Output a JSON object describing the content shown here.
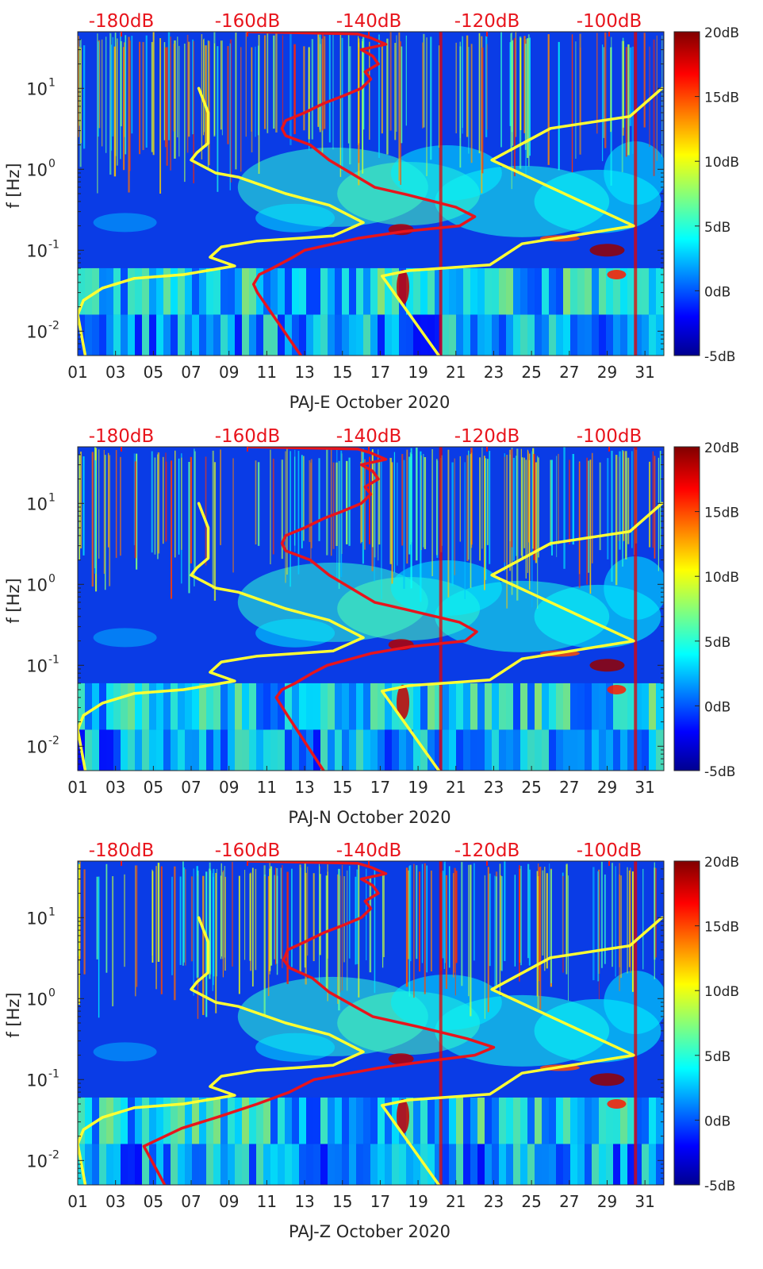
{
  "chart_data": [
    {
      "type": "heatmap",
      "title": "",
      "xlabel": "PAJ-E October 2020",
      "ylabel": "f [Hz]",
      "x_ticks": [
        "01",
        "03",
        "05",
        "07",
        "09",
        "11",
        "13",
        "15",
        "17",
        "19",
        "21",
        "23",
        "25",
        "27",
        "29",
        "31"
      ],
      "xlim": [
        1,
        32
      ],
      "yscale": "log",
      "ylim": [
        0.005,
        50
      ],
      "y_ticks": [
        {
          "base": "10",
          "exp": "1",
          "value": 10
        },
        {
          "base": "10",
          "exp": "0",
          "value": 1
        },
        {
          "base": "10",
          "exp": "-1",
          "value": 0.1
        },
        {
          "base": "10",
          "exp": "-2",
          "value": 0.01
        }
      ],
      "top_axis_ticks": [
        "-180dB",
        "-160dB",
        "-140dB",
        "-120dB",
        "-100dB"
      ],
      "top_axis_color": "#e8141c",
      "colorbar": {
        "ticks": [
          "20dB",
          "15dB",
          "10dB",
          "5dB",
          "0dB",
          "-5dB"
        ],
        "range": [
          -5,
          20
        ],
        "colormap": "jet"
      },
      "series": [
        {
          "color": "#ffff33",
          "points": [
            [
              1.4,
              0.005
            ],
            [
              1.0,
              0.016
            ],
            [
              1.3,
              0.024
            ],
            [
              2.3,
              0.034
            ],
            [
              4.0,
              0.045
            ],
            [
              6.6,
              0.05
            ],
            [
              9.3,
              0.064
            ],
            [
              8.0,
              0.082
            ],
            [
              8.6,
              0.11
            ],
            [
              10.5,
              0.13
            ],
            [
              14.5,
              0.15
            ],
            [
              16.1,
              0.22
            ],
            [
              14.3,
              0.36
            ],
            [
              12.0,
              0.5
            ],
            [
              9.5,
              0.8
            ],
            [
              8.3,
              0.9
            ],
            [
              7.0,
              1.3
            ],
            [
              7.3,
              1.6
            ],
            [
              7.9,
              2.1
            ],
            [
              7.9,
              5
            ],
            [
              7.4,
              10
            ]
          ]
        },
        {
          "color": "#ffff33",
          "points": [
            [
              20.1,
              0.005
            ],
            [
              17.1,
              0.048
            ],
            [
              18.5,
              0.056
            ],
            [
              22.8,
              0.066
            ],
            [
              24.5,
              0.12
            ],
            [
              30.4,
              0.2
            ],
            [
              26.0,
              0.6
            ],
            [
              22.9,
              1.3
            ],
            [
              26.0,
              3.2
            ],
            [
              30.2,
              4.5
            ],
            [
              31.9,
              10
            ]
          ]
        },
        {
          "color": "#e8141c",
          "points": [
            [
              12.8,
              0.005
            ],
            [
              10.5,
              0.03
            ],
            [
              10.3,
              0.038
            ],
            [
              10.6,
              0.05
            ],
            [
              11.3,
              0.06
            ],
            [
              12.3,
              0.08
            ],
            [
              13.0,
              0.1
            ],
            [
              15.8,
              0.14
            ],
            [
              18.2,
              0.17
            ],
            [
              21.2,
              0.2
            ],
            [
              22.0,
              0.26
            ],
            [
              21.0,
              0.34
            ],
            [
              18.5,
              0.48
            ],
            [
              16.7,
              0.6
            ],
            [
              14.3,
              1.3
            ],
            [
              13.3,
              2
            ],
            [
              12.0,
              2.6
            ],
            [
              11.8,
              3.2
            ],
            [
              12.0,
              4
            ],
            [
              13.0,
              5
            ],
            [
              14.0,
              6.5
            ],
            [
              15.0,
              8
            ],
            [
              16.0,
              10
            ],
            [
              16.5,
              13
            ],
            [
              16.2,
              16
            ],
            [
              16.9,
              20
            ],
            [
              16.6,
              25
            ],
            [
              16.0,
              30
            ],
            [
              17.3,
              35
            ],
            [
              16.5,
              42
            ],
            [
              15.8,
              47
            ],
            [
              10.0,
              50
            ]
          ]
        }
      ]
    },
    {
      "type": "heatmap",
      "title": "",
      "xlabel": "PAJ-N October 2020",
      "ylabel": "f [Hz]",
      "x_ticks": [
        "01",
        "03",
        "05",
        "07",
        "09",
        "11",
        "13",
        "15",
        "17",
        "19",
        "21",
        "23",
        "25",
        "27",
        "29",
        "31"
      ],
      "xlim": [
        1,
        32
      ],
      "yscale": "log",
      "ylim": [
        0.005,
        50
      ],
      "y_ticks": [
        {
          "base": "10",
          "exp": "1",
          "value": 10
        },
        {
          "base": "10",
          "exp": "0",
          "value": 1
        },
        {
          "base": "10",
          "exp": "-1",
          "value": 0.1
        },
        {
          "base": "10",
          "exp": "-2",
          "value": 0.01
        }
      ],
      "top_axis_ticks": [
        "-180dB",
        "-160dB",
        "-140dB",
        "-120dB",
        "-100dB"
      ],
      "top_axis_color": "#e8141c",
      "colorbar": {
        "ticks": [
          "20dB",
          "15dB",
          "10dB",
          "5dB",
          "0dB",
          "-5dB"
        ],
        "range": [
          -5,
          20
        ],
        "colormap": "jet"
      },
      "series": [
        {
          "color": "#ffff33",
          "points": [
            [
              1.4,
              0.005
            ],
            [
              1.0,
              0.016
            ],
            [
              1.3,
              0.024
            ],
            [
              2.3,
              0.034
            ],
            [
              4.0,
              0.045
            ],
            [
              6.6,
              0.05
            ],
            [
              9.3,
              0.064
            ],
            [
              8.0,
              0.082
            ],
            [
              8.6,
              0.11
            ],
            [
              10.5,
              0.13
            ],
            [
              14.5,
              0.15
            ],
            [
              16.1,
              0.22
            ],
            [
              14.3,
              0.36
            ],
            [
              12.0,
              0.5
            ],
            [
              9.5,
              0.8
            ],
            [
              8.3,
              0.9
            ],
            [
              7.0,
              1.3
            ],
            [
              7.3,
              1.6
            ],
            [
              7.9,
              2.1
            ],
            [
              7.9,
              5
            ],
            [
              7.4,
              10
            ]
          ]
        },
        {
          "color": "#ffff33",
          "points": [
            [
              20.1,
              0.005
            ],
            [
              17.1,
              0.048
            ],
            [
              18.5,
              0.056
            ],
            [
              22.8,
              0.066
            ],
            [
              24.5,
              0.12
            ],
            [
              30.4,
              0.2
            ],
            [
              26.0,
              0.6
            ],
            [
              22.9,
              1.3
            ],
            [
              26.0,
              3.2
            ],
            [
              30.2,
              4.5
            ],
            [
              31.9,
              10
            ]
          ]
        },
        {
          "color": "#e8141c",
          "points": [
            [
              14.0,
              0.005
            ],
            [
              12.0,
              0.026
            ],
            [
              11.5,
              0.04
            ],
            [
              11.8,
              0.05
            ],
            [
              12.5,
              0.06
            ],
            [
              13.4,
              0.08
            ],
            [
              14.2,
              0.1
            ],
            [
              16.5,
              0.14
            ],
            [
              18.6,
              0.17
            ],
            [
              21.5,
              0.2
            ],
            [
              22.1,
              0.26
            ],
            [
              21.2,
              0.34
            ],
            [
              18.5,
              0.48
            ],
            [
              16.7,
              0.6
            ],
            [
              14.3,
              1.3
            ],
            [
              13.3,
              2
            ],
            [
              12.0,
              2.6
            ],
            [
              11.8,
              3.2
            ],
            [
              12.0,
              4
            ],
            [
              13.0,
              5
            ],
            [
              14.0,
              6.5
            ],
            [
              15.0,
              8
            ],
            [
              16.0,
              10
            ],
            [
              16.5,
              13
            ],
            [
              16.2,
              16
            ],
            [
              16.9,
              20
            ],
            [
              16.6,
              25
            ],
            [
              16.0,
              30
            ],
            [
              17.3,
              35
            ],
            [
              16.5,
              42
            ],
            [
              15.8,
              47
            ],
            [
              10.0,
              50
            ]
          ]
        }
      ]
    },
    {
      "type": "heatmap",
      "title": "",
      "xlabel": "PAJ-Z October 2020",
      "ylabel": "f [Hz]",
      "x_ticks": [
        "01",
        "03",
        "05",
        "07",
        "09",
        "11",
        "13",
        "15",
        "17",
        "19",
        "21",
        "23",
        "25",
        "27",
        "29",
        "31"
      ],
      "xlim": [
        1,
        32
      ],
      "yscale": "log",
      "ylim": [
        0.005,
        50
      ],
      "y_ticks": [
        {
          "base": "10",
          "exp": "1",
          "value": 10
        },
        {
          "base": "10",
          "exp": "0",
          "value": 1
        },
        {
          "base": "10",
          "exp": "-1",
          "value": 0.1
        },
        {
          "base": "10",
          "exp": "-2",
          "value": 0.01
        }
      ],
      "top_axis_ticks": [
        "-180dB",
        "-160dB",
        "-140dB",
        "-120dB",
        "-100dB"
      ],
      "top_axis_color": "#e8141c",
      "colorbar": {
        "ticks": [
          "20dB",
          "15dB",
          "10dB",
          "5dB",
          "0dB",
          "-5dB"
        ],
        "range": [
          -5,
          20
        ],
        "colormap": "jet"
      },
      "series": [
        {
          "color": "#ffff33",
          "points": [
            [
              1.4,
              0.005
            ],
            [
              1.0,
              0.016
            ],
            [
              1.3,
              0.024
            ],
            [
              2.3,
              0.034
            ],
            [
              4.0,
              0.045
            ],
            [
              6.6,
              0.05
            ],
            [
              9.3,
              0.064
            ],
            [
              8.0,
              0.082
            ],
            [
              8.6,
              0.11
            ],
            [
              10.5,
              0.13
            ],
            [
              14.5,
              0.15
            ],
            [
              16.1,
              0.22
            ],
            [
              14.3,
              0.36
            ],
            [
              12.0,
              0.5
            ],
            [
              9.5,
              0.8
            ],
            [
              8.3,
              0.9
            ],
            [
              7.0,
              1.3
            ],
            [
              7.3,
              1.6
            ],
            [
              7.9,
              2.1
            ],
            [
              7.9,
              5
            ],
            [
              7.4,
              10
            ]
          ]
        },
        {
          "color": "#ffff33",
          "points": [
            [
              20.1,
              0.005
            ],
            [
              17.1,
              0.048
            ],
            [
              18.5,
              0.056
            ],
            [
              22.8,
              0.066
            ],
            [
              24.5,
              0.12
            ],
            [
              30.4,
              0.2
            ],
            [
              26.0,
              0.6
            ],
            [
              22.9,
              1.3
            ],
            [
              26.0,
              3.2
            ],
            [
              30.2,
              4.5
            ],
            [
              31.9,
              10
            ]
          ]
        },
        {
          "color": "#e8141c",
          "points": [
            [
              5.6,
              0.005
            ],
            [
              4.5,
              0.015
            ],
            [
              6.5,
              0.025
            ],
            [
              8.5,
              0.035
            ],
            [
              10.5,
              0.05
            ],
            [
              12.2,
              0.07
            ],
            [
              13.5,
              0.1
            ],
            [
              17.0,
              0.14
            ],
            [
              19.6,
              0.17
            ],
            [
              22.0,
              0.2
            ],
            [
              23.0,
              0.25
            ],
            [
              21.6,
              0.32
            ],
            [
              19.0,
              0.45
            ],
            [
              16.6,
              0.6
            ],
            [
              14.3,
              1.2
            ],
            [
              13.4,
              1.8
            ],
            [
              12.2,
              2.4
            ],
            [
              11.9,
              3
            ],
            [
              12.1,
              4
            ],
            [
              13.0,
              5
            ],
            [
              14.0,
              6.5
            ],
            [
              15.0,
              8
            ],
            [
              16.0,
              10
            ],
            [
              16.5,
              13
            ],
            [
              16.2,
              16
            ],
            [
              16.9,
              20
            ],
            [
              16.6,
              25
            ],
            [
              16.0,
              30
            ],
            [
              17.3,
              35
            ],
            [
              16.5,
              42
            ],
            [
              15.8,
              47
            ],
            [
              10.0,
              50
            ]
          ]
        }
      ]
    }
  ]
}
